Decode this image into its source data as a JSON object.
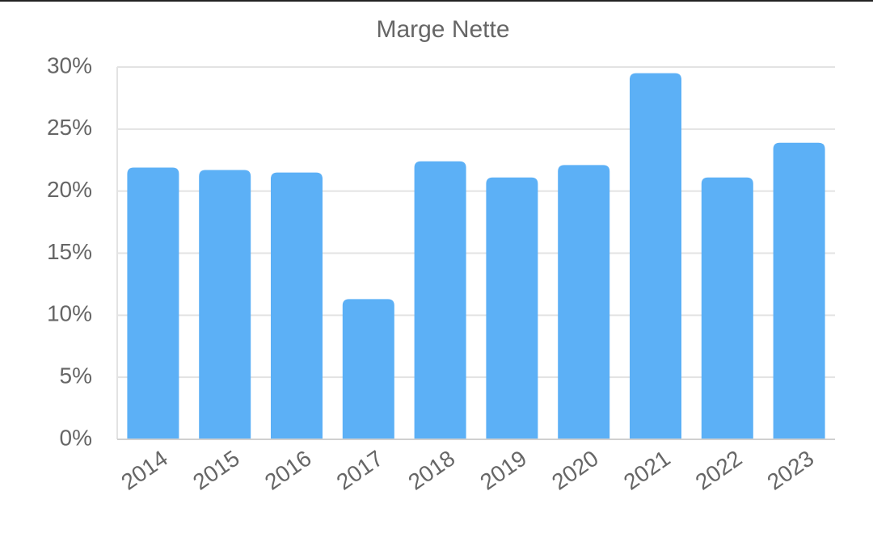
{
  "chart_data": {
    "type": "bar",
    "title": "Marge Nette",
    "categories": [
      "2014",
      "2015",
      "2016",
      "2017",
      "2018",
      "2019",
      "2020",
      "2021",
      "2022",
      "2023"
    ],
    "values": [
      21.9,
      21.7,
      21.5,
      11.3,
      22.4,
      21.1,
      22.1,
      29.5,
      21.1,
      23.9
    ],
    "color": "#5cb0f6",
    "ylim": [
      0,
      30
    ],
    "yticks": [
      {
        "value": 0,
        "label": "0%"
      },
      {
        "value": 5,
        "label": "5%"
      },
      {
        "value": 10,
        "label": "10%"
      },
      {
        "value": 15,
        "label": "15%"
      },
      {
        "value": 20,
        "label": "20%"
      },
      {
        "value": 25,
        "label": "25%"
      },
      {
        "value": 30,
        "label": "30%"
      }
    ],
    "grid": true
  }
}
